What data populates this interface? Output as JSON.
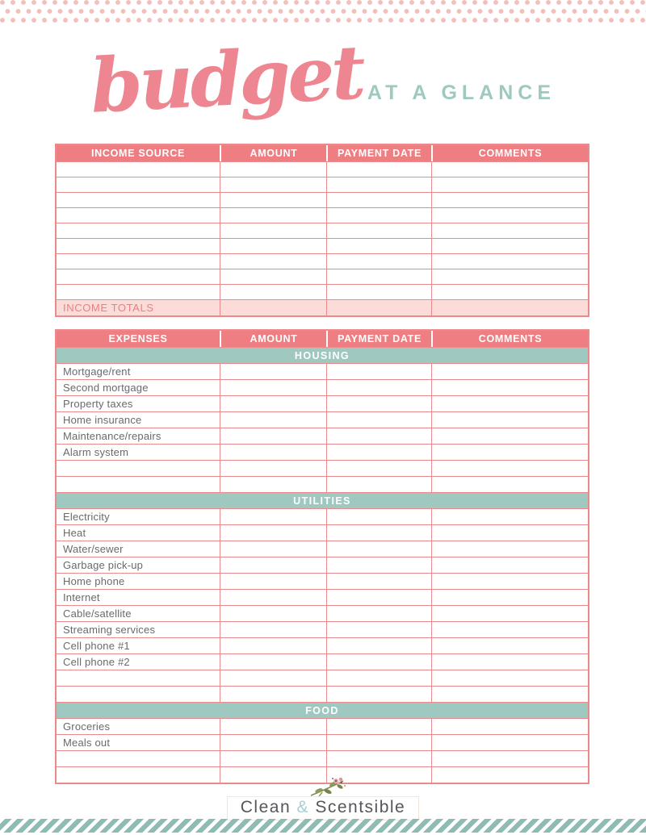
{
  "title": {
    "script": "budget",
    "suffix": "AT A GLANCE"
  },
  "income_table": {
    "columns": [
      "INCOME SOURCE",
      "AMOUNT",
      "PAYMENT DATE",
      "COMMENTS"
    ],
    "empty_rows": 9,
    "totals_label": "INCOME TOTALS"
  },
  "expenses_table": {
    "columns": [
      "EXPENSES",
      "AMOUNT",
      "PAYMENT DATE",
      "COMMENTS"
    ],
    "sections": [
      {
        "title": "HOUSING",
        "items": [
          "Mortgage/rent",
          "Second mortgage",
          "Property taxes",
          "Home insurance",
          "Maintenance/repairs",
          "Alarm system"
        ],
        "extra_empty_rows": 2
      },
      {
        "title": "UTILITIES",
        "items": [
          "Electricity",
          "Heat",
          "Water/sewer",
          "Garbage pick-up",
          "Home phone",
          "Internet",
          "Cable/satellite",
          "Streaming services",
          "Cell phone #1",
          "Cell phone #2"
        ],
        "extra_empty_rows": 2
      },
      {
        "title": "FOOD",
        "items": [
          "Groceries",
          "Meals out"
        ],
        "extra_empty_rows": 2
      }
    ]
  },
  "footer": {
    "brand_first": "Clean",
    "brand_amp": "&",
    "brand_second": "Scentsible",
    "sprig_icon": "floral-sprig"
  },
  "colors": {
    "coral": "#ee7e81",
    "coral_border": "#e98a8c",
    "light_pink": "#fbdcd8",
    "teal": "#9fc9c0",
    "dot_pink": "#f4bfba",
    "stripe_teal": "#8fbcb2",
    "label_gray": "#696a6c",
    "brand_gray": "#55565a",
    "amp_blue": "#a9cdd4",
    "script_coral": "#ee8691"
  }
}
